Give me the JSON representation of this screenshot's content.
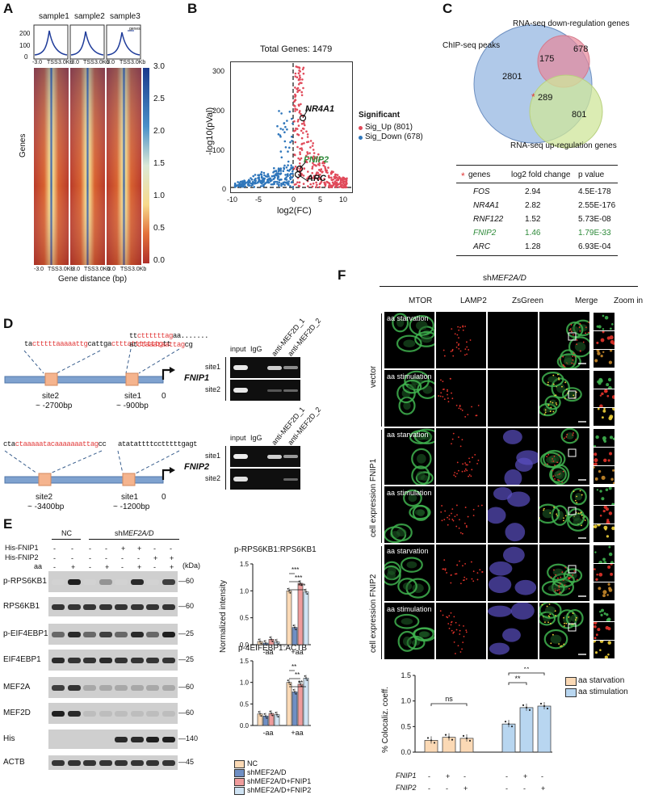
{
  "panel_labels": {
    "A": "A",
    "B": "B",
    "C": "C",
    "D": "D",
    "E": "E",
    "F": "F"
  },
  "panelA": {
    "samples": [
      "sample1",
      "sample2",
      "sample3"
    ],
    "profile_yticks": [
      "200",
      "100",
      "0"
    ],
    "profile_legend": "genes",
    "profile_xticks": [
      "-3.0",
      "TSS",
      "3.0Kb"
    ],
    "heatmap_xticks": [
      "-3.0",
      "TSS",
      "3.0Kb"
    ],
    "ylabel": "Genes",
    "xlabel": "Gene distance (bp)",
    "colorbar_ticks": [
      "3.0",
      "2.5",
      "2.0",
      "1.5",
      "1.0",
      "0.5",
      "0.0"
    ]
  },
  "panelB": {
    "title": "Total Genes: 1479",
    "xlabel": "log2(FC)",
    "ylabel": "-log10(pVal)",
    "yticks": [
      "300",
      "200",
      "100",
      "0"
    ],
    "xticks": [
      "-10",
      "-5",
      "0",
      "5",
      "10"
    ],
    "legend_title": "Significant",
    "legend_up": "Sig_Up (801)",
    "legend_down": "Sig_Down (678)",
    "genes": [
      "NR4A1",
      "FNIP2",
      "ARC"
    ],
    "colors": {
      "up": "#e04a5a",
      "down": "#2f76bb"
    }
  },
  "panelC": {
    "venn_labels": {
      "chip": "ChIP-seq peaks",
      "down": "RNA-seq down-regulation genes",
      "up": "RNA-seq up-regulation genes"
    },
    "venn_values": {
      "chip_only": "2801",
      "chip_down": "175",
      "down_only": "678",
      "chip_up": "289",
      "up_only": "801"
    },
    "star": "*",
    "table_headers": [
      "genes",
      "log2 fold change",
      "p value"
    ],
    "table_rows": [
      {
        "gene": "FOS",
        "fc": "2.94",
        "p": "4.5E-178"
      },
      {
        "gene": "NR4A1",
        "fc": "2.82",
        "p": "2.55E-176"
      },
      {
        "gene": "RNF122",
        "fc": "1.52",
        "p": "5.73E-08"
      },
      {
        "gene": "FNIP2",
        "fc": "1.46",
        "p": "1.79E-33"
      },
      {
        "gene": "ARC",
        "fc": "1.28",
        "p": "6.93E-04"
      }
    ]
  },
  "panelD": {
    "fnip1": {
      "site2_seq_red": "ctttttaaaaattg",
      "site2_seq_pre": "ta",
      "site2_seq_post": "cattga",
      "site2_seq_red2": "ctttatttttttg",
      "site2_seq_end": "tt",
      "site1_seq_line1_pre": "tt",
      "site1_seq_line1_red": "cttttttag",
      "site1_seq_line1_post": "aa.......",
      "site1_seq_line2_pre": "at",
      "site1_seq_line2_red": "ctaaataattag",
      "site1_seq_line2_post": "cg",
      "site2": "site2",
      "site2_pos": "~ -2700bp",
      "site1": "site1",
      "site1_pos": "~ -900bp",
      "zero": "0",
      "gene": "FNIP1"
    },
    "fnip2": {
      "site2_seq_pre": "cta",
      "site2_seq_red": "ctaaaaatacaaaaaaattag",
      "site2_seq_post": "cc",
      "site1_seq": "atatattttcctttttgagt",
      "site2": "site2",
      "site2_pos": "~ -3400bp",
      "site1": "site1",
      "site1_pos": "~ -1200bp",
      "zero": "0",
      "gene": "FNIP2"
    },
    "gel_headers": [
      "input",
      "IgG",
      "anti-MEF2D_1",
      "anti-MEF2D_2"
    ],
    "gel_rows": [
      "site1",
      "site2"
    ]
  },
  "panelE": {
    "group_nc": "NC",
    "group_sh": "shMEF2A/D",
    "cond_labels": [
      "His-FNIP1",
      "His-FNIP2",
      "aa"
    ],
    "cond_values": [
      [
        "-",
        "-",
        "-",
        "-",
        "+",
        "+",
        "-",
        "-"
      ],
      [
        "-",
        "-",
        "-",
        "-",
        "-",
        "-",
        "+",
        "+"
      ],
      [
        "-",
        "+",
        "-",
        "+",
        "-",
        "+",
        "-",
        "+"
      ]
    ],
    "kda_label": "(kDa)",
    "blots": [
      {
        "name": "p-RPS6KB1",
        "mw": "60"
      },
      {
        "name": "RPS6KB1",
        "mw": "60"
      },
      {
        "name": "p-EIF4EBP1",
        "mw": "25"
      },
      {
        "name": "EIF4EBP1",
        "mw": "25"
      },
      {
        "name": "MEF2A",
        "mw": "60"
      },
      {
        "name": "MEF2D",
        "mw": "60"
      },
      {
        "name": "His",
        "mw": "140"
      },
      {
        "name": "ACTB",
        "mw": "45"
      }
    ]
  },
  "panelEbar": {
    "title1": "p-RPS6KB1:RPS6KB1",
    "title2": "p-4EIFEBP1:ACTB",
    "ylabel": "Normalized intensity",
    "groups": [
      "-aa",
      "+aa"
    ],
    "yticks1": [
      "1.5",
      "1.0",
      "0.5",
      "0.0"
    ],
    "yticks2": [
      "1.5",
      "1.0",
      "0.5",
      "0.0"
    ],
    "legend": [
      "NC",
      "shMEF2A/D",
      "shMEF2A/D+FNIP1",
      "shMEF2A/D+FNIP2"
    ],
    "sig1": [
      "***",
      "***",
      "***"
    ],
    "sig2": [
      "**",
      "**",
      "**"
    ],
    "colors": [
      "#fbd9b5",
      "#6f8fc4",
      "#ef9c9c",
      "#cfe3f3"
    ],
    "chart_data": [
      {
        "type": "bar",
        "title": "p-RPS6KB1:RPS6KB1",
        "categories": [
          "-aa",
          "+aa"
        ],
        "ylim": [
          0,
          1.5
        ],
        "series": [
          {
            "name": "NC",
            "values": [
              0.06,
              1.0
            ]
          },
          {
            "name": "shMEF2A/D",
            "values": [
              0.03,
              0.32
            ]
          },
          {
            "name": "shMEF2A/D+FNIP1",
            "values": [
              0.1,
              1.14
            ]
          },
          {
            "name": "shMEF2A/D+FNIP2",
            "values": [
              0.05,
              0.98
            ]
          }
        ]
      },
      {
        "type": "bar",
        "title": "p-4EIFEBP1:ACTB",
        "categories": [
          "-aa",
          "+aa"
        ],
        "ylim": [
          0,
          1.5
        ],
        "series": [
          {
            "name": "NC",
            "values": [
              0.27,
              1.0
            ]
          },
          {
            "name": "shMEF2A/D",
            "values": [
              0.22,
              0.78
            ]
          },
          {
            "name": "shMEF2A/D+FNIP1",
            "values": [
              0.28,
              0.96
            ]
          },
          {
            "name": "shMEF2A/D+FNIP2",
            "values": [
              0.25,
              1.1
            ]
          }
        ]
      }
    ]
  },
  "panelF": {
    "title": "shMEF2A/D",
    "columns": [
      "MTOR",
      "LAMP2",
      "ZsGreen",
      "Merge",
      "Zoom in"
    ],
    "groups": [
      "vector",
      "cell expression FNIP1",
      "cell expression FNIP2"
    ],
    "row_labels": [
      "aa starvation",
      "aa stimulation",
      "aa starvation",
      "aa stimulation",
      "aa starvation",
      "aa stimulation"
    ]
  },
  "panelFbar": {
    "ylabel": "% Colocaliz. coeff.",
    "yticks": [
      "1.5",
      "1.0",
      "0.5",
      "0.0"
    ],
    "legend": [
      "aa starvation",
      "aa stimulation"
    ],
    "colors": [
      "#fbd9b5",
      "#b8d6f0"
    ],
    "row_labels": [
      "FNIP1",
      "FNIP2"
    ],
    "row_values": [
      [
        "-",
        "+",
        "-",
        "-",
        "+",
        "-"
      ],
      [
        "-",
        "-",
        "+",
        "-",
        "-",
        "+"
      ]
    ],
    "sig": [
      "ns",
      "**",
      "**"
    ],
    "chart_data": {
      "type": "bar",
      "categories": [
        "starv-vector",
        "starv-FNIP1",
        "starv-FNIP2",
        "stim-vector",
        "stim-FNIP1",
        "stim-FNIP2"
      ],
      "values": [
        0.23,
        0.29,
        0.27,
        0.55,
        0.87,
        0.9
      ],
      "ylim": [
        0,
        1.5
      ]
    }
  }
}
